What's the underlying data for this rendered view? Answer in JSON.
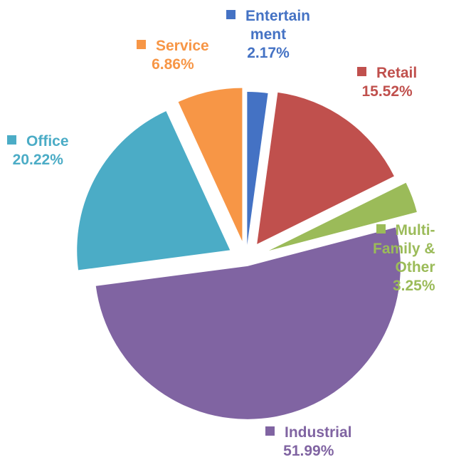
{
  "chart_data": {
    "type": "pie",
    "slices": [
      {
        "name": "Entertainment",
        "label_lines": [
          "Entertain",
          "ment"
        ],
        "percent_label": "2.17%",
        "value": 2.17,
        "color": "#4472C4"
      },
      {
        "name": "Retail",
        "label_lines": [
          "Retail"
        ],
        "percent_label": "15.52%",
        "value": 15.52,
        "color": "#C0504D"
      },
      {
        "name": "Multi-Family & Other",
        "label_lines": [
          "Multi-",
          "Family &",
          "Other"
        ],
        "percent_label": "3.25%",
        "value": 3.25,
        "color": "#9BBB59"
      },
      {
        "name": "Industrial",
        "label_lines": [
          "Industrial"
        ],
        "percent_label": "51.99%",
        "value": 51.99,
        "color": "#8064A2"
      },
      {
        "name": "Office",
        "label_lines": [
          "Office"
        ],
        "percent_label": "20.22%",
        "value": 20.22,
        "color": "#4BACC6"
      },
      {
        "name": "Service",
        "label_lines": [
          "Service"
        ],
        "percent_label": "6.86%",
        "value": 6.86,
        "color": "#F79646"
      }
    ],
    "exploded": true,
    "start_angle": "12 o'clock, clockwise"
  }
}
